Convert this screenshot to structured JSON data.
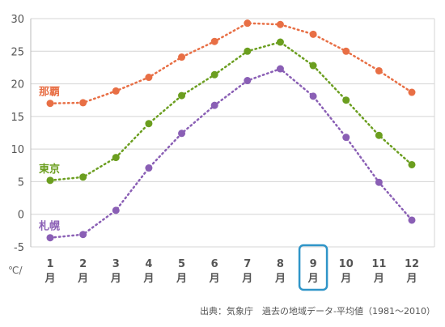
{
  "chart_data": {
    "type": "line",
    "categories": [
      "1月",
      "2月",
      "3月",
      "4月",
      "5月",
      "6月",
      "7月",
      "8月",
      "9月",
      "10月",
      "11月",
      "12月"
    ],
    "tick_numbers": [
      "1",
      "2",
      "3",
      "4",
      "5",
      "6",
      "7",
      "8",
      "9",
      "10",
      "11",
      "12"
    ],
    "tick_unit": "月",
    "ylim": [
      -5,
      30
    ],
    "yticks": [
      -5,
      0,
      5,
      10,
      15,
      20,
      25,
      30
    ],
    "y_unit": "℃/",
    "grid": true,
    "highlight_category_index": 8,
    "series": [
      {
        "name": "那覇",
        "color": "#e86f45",
        "values": [
          17.0,
          17.1,
          18.9,
          21.0,
          24.1,
          26.5,
          29.3,
          29.1,
          27.6,
          25.0,
          22.0,
          18.7
        ]
      },
      {
        "name": "東京",
        "color": "#6b9e1f",
        "values": [
          5.2,
          5.7,
          8.7,
          13.9,
          18.2,
          21.4,
          25.0,
          26.4,
          22.8,
          17.5,
          12.1,
          7.6
        ]
      },
      {
        "name": "札幌",
        "color": "#8a5fb5",
        "values": [
          -3.6,
          -3.1,
          0.6,
          7.1,
          12.4,
          16.7,
          20.5,
          22.3,
          18.1,
          11.8,
          4.9,
          -0.9
        ]
      }
    ],
    "source": "出典：気象庁　過去の地域データ-平均値（1981〜2010）"
  }
}
